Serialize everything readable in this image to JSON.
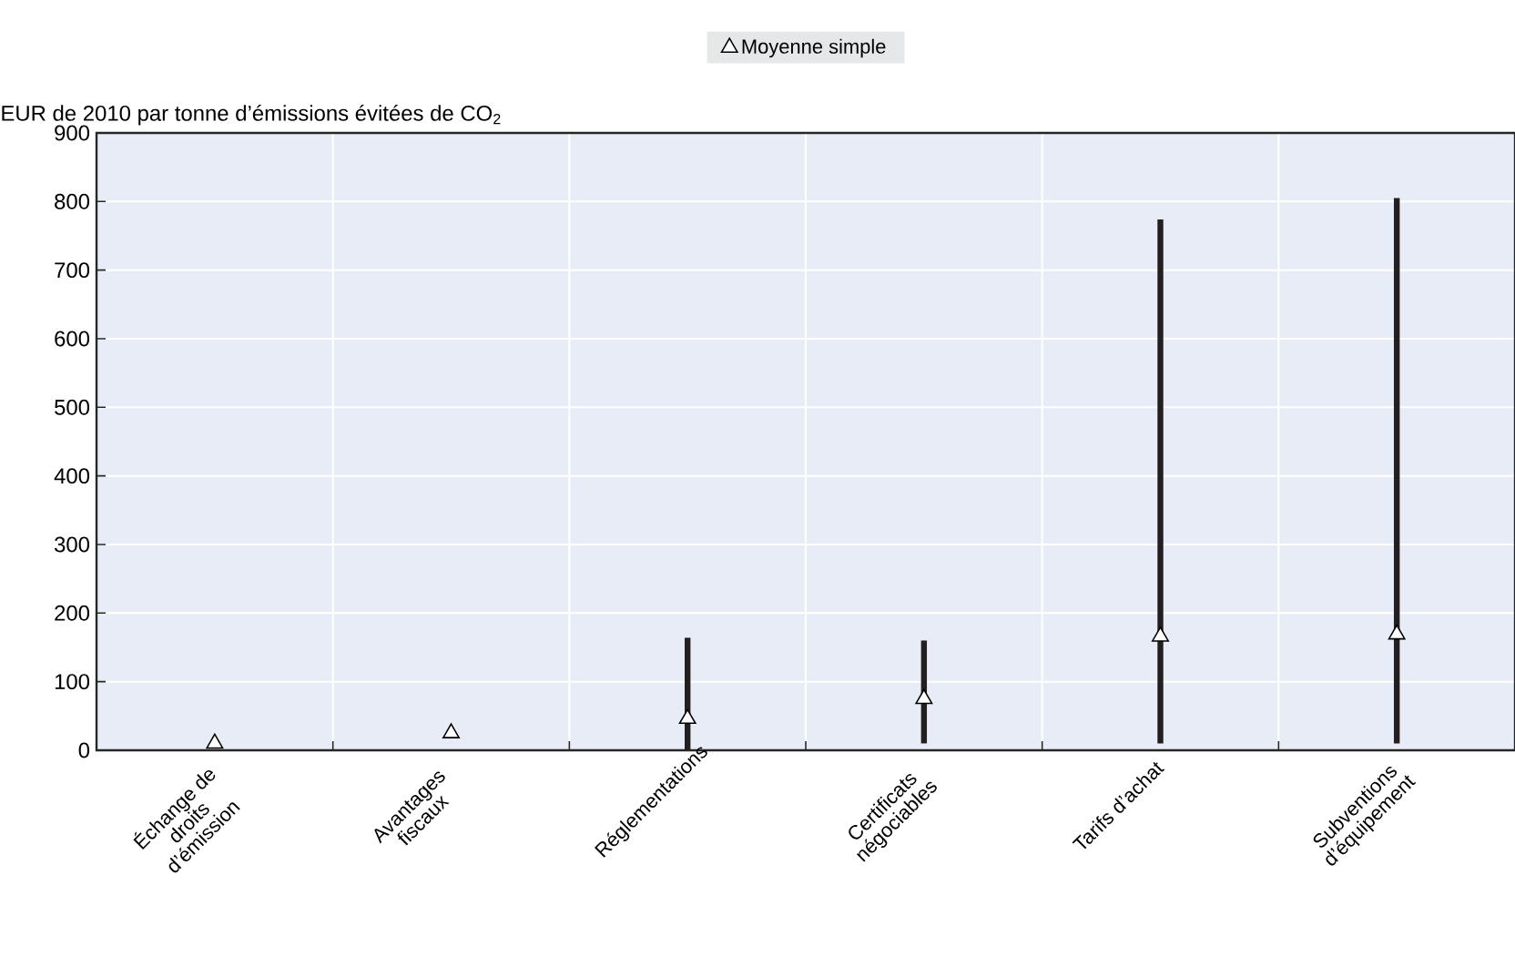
{
  "chart_data": {
    "type": "bar",
    "ylabel": "EUR de 2010 par tonne d’émissions évitées de CO$_{2}$",
    "categories": [
      "Échange de droits d’émission",
      "Avantages fiscaux",
      "Réglementations",
      "Certificats négociables",
      "Tarifs d’achat",
      "Subventions d’équipement"
    ],
    "series": [
      {
        "color": "#231f20",
        "base": [
          null,
          null,
          0,
          10,
          10,
          10
        ],
        "values": [
          null,
          null,
          164,
          150,
          764,
          795
        ]
      },
      {
        "type": "scatter",
        "name": "Moyenne simple",
        "color": "#000000",
        "marker": "triangle",
        "values": [
          10,
          25,
          46,
          75,
          166,
          169
        ]
      }
    ],
    "ylim": [
      0,
      900
    ],
    "yticks": [
      0,
      100,
      200,
      300,
      400,
      500,
      600,
      700,
      800,
      900
    ],
    "grid": true,
    "legend": "top"
  }
}
